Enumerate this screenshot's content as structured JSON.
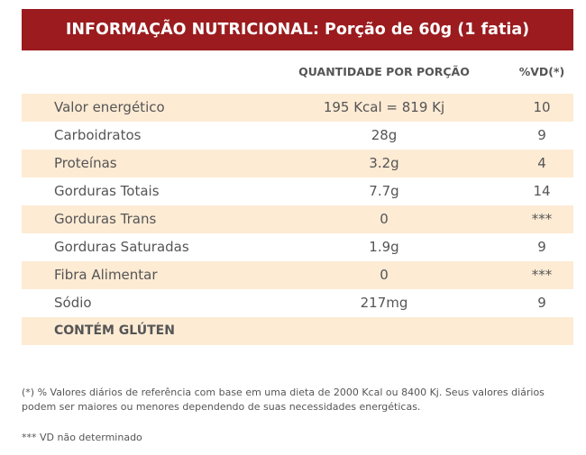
{
  "header": {
    "title": "INFORMAÇÃO NUTRICIONAL: Porção de 60g (1 fatia)"
  },
  "columns": {
    "quantity": "QUANTIDADE POR PORÇÃO",
    "vd": "%VD(*)"
  },
  "rows": [
    {
      "name": "Valor energético",
      "qty": "195 Kcal = 819 Kj",
      "vd": "10"
    },
    {
      "name": "Carboidratos",
      "qty": "28g",
      "vd": "9"
    },
    {
      "name": "Proteínas",
      "qty": "3.2g",
      "vd": "4"
    },
    {
      "name": "Gorduras Totais",
      "qty": "7.7g",
      "vd": "14"
    },
    {
      "name": "Gorduras Trans",
      "qty": "0",
      "vd": "***"
    },
    {
      "name": "Gorduras Saturadas",
      "qty": "1.9g",
      "vd": "9"
    },
    {
      "name": "Fibra Alimentar",
      "qty": "0",
      "vd": "***"
    },
    {
      "name": "Sódio",
      "qty": "217mg",
      "vd": "9"
    }
  ],
  "gluten": "CONTÉM GLÚTEN",
  "footnotes": {
    "vd_reference": "(*) % Valores diários de referência com base em uma dieta de 2000 Kcal ou 8400 Kj. Seus valores diários podem ser maiores ou menores dependendo de suas necessidades energéticas.",
    "not_determined": "*** VD não determinado"
  },
  "colors": {
    "header_bg": "#9b1b1e",
    "shade_bg": "#fdebd4"
  }
}
